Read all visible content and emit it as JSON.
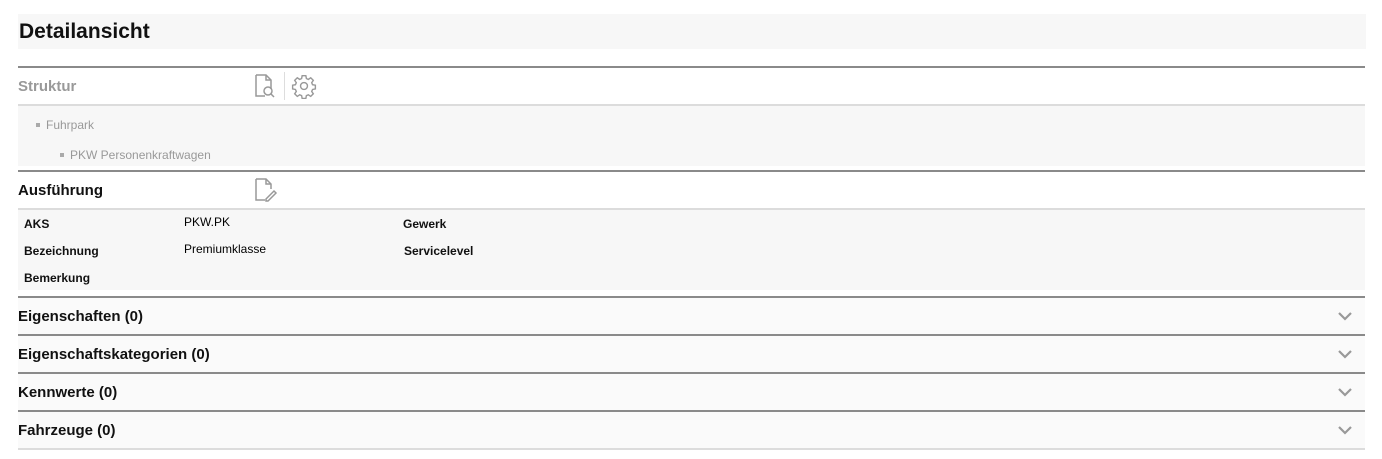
{
  "title": "Detailansicht",
  "struktur": {
    "label": "Struktur",
    "tree": [
      "Fuhrpark",
      "PKW Personenkraftwagen"
    ]
  },
  "ausfuehrung": {
    "label": "Ausführung",
    "fields": {
      "aks_label": "AKS",
      "aks_value": "PKW.PK",
      "bez_label": "Bezeichnung",
      "bez_value": "Premiumklasse",
      "bem_label": "Bemerkung",
      "gewerk_label": "Gewerk",
      "service_label": "Servicelevel"
    }
  },
  "sections": [
    {
      "label": "Eigenschaften (0)"
    },
    {
      "label": "Eigenschaftskategorien (0)"
    },
    {
      "label": "Kennwerte (0)"
    },
    {
      "label": "Fahrzeuge (0)"
    }
  ]
}
